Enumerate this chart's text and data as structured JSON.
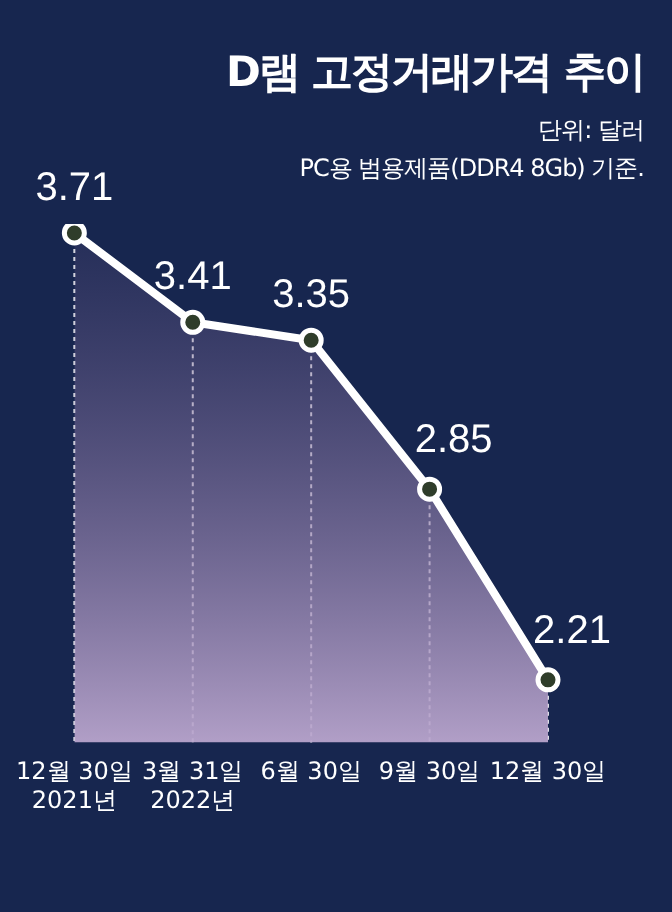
{
  "chart_data": {
    "type": "area",
    "title": "D램 고정거래가격 추이",
    "subtitle": "단위: 달러\nPC용 범용제품(DDR4 8Gb) 기준.",
    "categories": [
      "12월 30일\n2021년",
      "3월 31일\n2022년",
      "6월 30일",
      "9월 30일",
      "12월 30일"
    ],
    "series": [
      {
        "color": "#ffffff",
        "values": [
          3.71,
          3.41,
          3.35,
          2.85,
          2.21
        ]
      }
    ],
    "data_labels": true,
    "marker": "circle",
    "grid": false,
    "legend": false
  }
}
